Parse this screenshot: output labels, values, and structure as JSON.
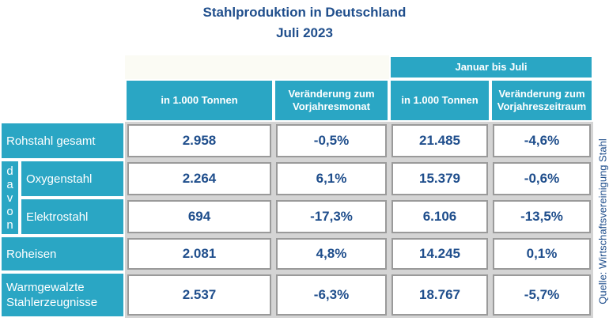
{
  "title": "Stahlproduktion in Deutschland",
  "subtitle": "Juli 2023",
  "chart_data": {
    "type": "table",
    "group_header": "Januar bis Juli",
    "columns": [
      "in 1.000 Tonnen",
      "Veränderung zum Vorjahresmonat",
      "in 1.000 Tonnen",
      "Veränderung zum Vorjahreszeitraum"
    ],
    "davon_label": "davon",
    "rows": [
      {
        "label": "Rohstahl gesamt",
        "values": [
          "2.958",
          "-0,5%",
          "21.485",
          "-4,6%"
        ]
      },
      {
        "label": "Oxygenstahl",
        "values": [
          "2.264",
          "6,1%",
          "15.379",
          "-0,6%"
        ]
      },
      {
        "label": "Elektrostahl",
        "values": [
          "694",
          "-17,3%",
          "6.106",
          "-13,5%"
        ]
      },
      {
        "label": "Roheisen",
        "values": [
          "2.081",
          "4,8%",
          "14.245",
          "0,1%"
        ]
      },
      {
        "label": "Warmgewalzte Stahlerzeugnisse",
        "values": [
          "2.537",
          "-6,3%",
          "18.767",
          "-5,7%"
        ]
      }
    ],
    "source": "Quelle: Wirtschaftsvereinigung Stahl"
  },
  "colors": {
    "accent": "#2aa6c4",
    "text": "#1f4e8c",
    "border": "#9a9a9a"
  }
}
